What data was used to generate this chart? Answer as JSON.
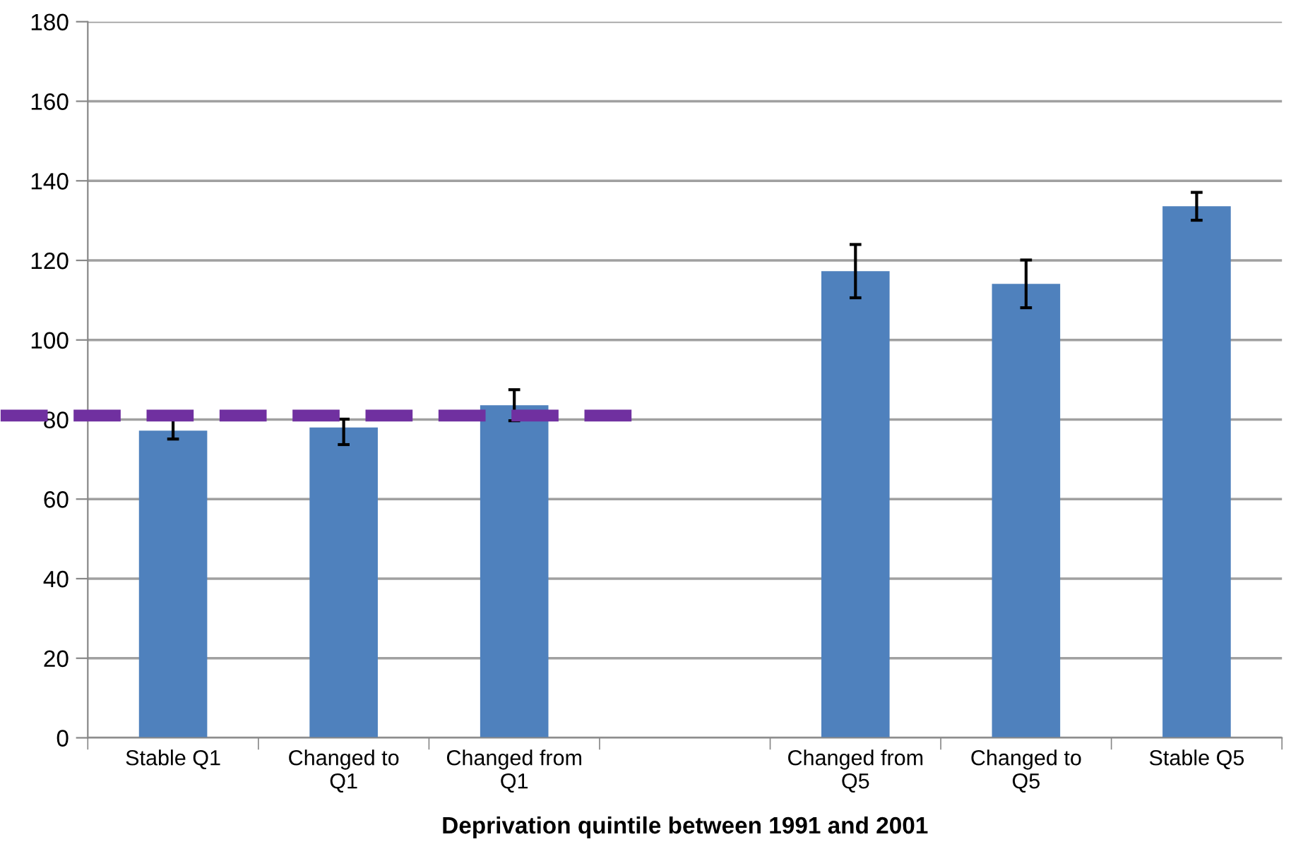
{
  "chart_data": {
    "type": "bar",
    "xlabel": "Deprivation quintile between 1991 and 2001",
    "categories": [
      "Stable Q1",
      "Changed to\nQ1",
      "Changed from\nQ1",
      null,
      "Changed from\nQ5",
      "Changed to\nQ5",
      "Stable Q5"
    ],
    "values": [
      77.2,
      78.0,
      83.6,
      null,
      117.3,
      114.1,
      133.6
    ],
    "errors": [
      [
        75.1,
        80.4
      ],
      [
        73.7,
        80.1
      ],
      [
        79.7,
        87.5
      ],
      null,
      [
        110.6,
        124.0
      ],
      [
        108.1,
        120.1
      ],
      [
        130.1,
        137.1
      ]
    ],
    "color": "#4f81bd",
    "ylim": [
      0,
      180
    ],
    "yticks": [
      0,
      20,
      40,
      60,
      80,
      100,
      120,
      140,
      160,
      180
    ],
    "grid": "y",
    "legend": false,
    "ref_lines": [
      {
        "axis": "y",
        "value": 81,
        "color": "#7030a0",
        "line_style": "dashed"
      }
    ]
  }
}
